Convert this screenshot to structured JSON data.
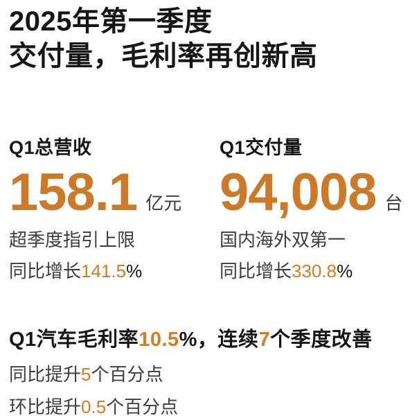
{
  "title": {
    "line1": "2025年第一季度",
    "line2": "交付量，毛利率再创新高"
  },
  "stats": {
    "revenue": {
      "label": "Q1总营收",
      "value": "158.1",
      "unit": "亿元",
      "note": "超季度指引上限",
      "growth_prefix": "同比增长",
      "growth_value": "141.5",
      "growth_suffix": "%"
    },
    "deliveries": {
      "label": "Q1交付量",
      "value": "94,008",
      "unit": "台",
      "note": "国内海外双第一",
      "growth_prefix": "同比增长",
      "growth_value": "330.8",
      "growth_suffix": "%"
    }
  },
  "gross_margin": {
    "headline": {
      "seg1": "Q1汽车毛利率",
      "seg2": "10.5",
      "seg3": "%，连续",
      "seg4": "7",
      "seg5": "个季度改善"
    },
    "yoy_line": {
      "prefix": "同比提升",
      "value": "5",
      "suffix": "个百分点"
    },
    "qoq_line": {
      "prefix": "环比提升",
      "value": "0.5",
      "suffix": "个百分点"
    }
  },
  "colors": {
    "background": "#ffffff",
    "text_dark": "#161616",
    "text_gray": "#3c3c3c",
    "accent_big": "#cc7a28",
    "accent_inline": "#d97b1e"
  }
}
